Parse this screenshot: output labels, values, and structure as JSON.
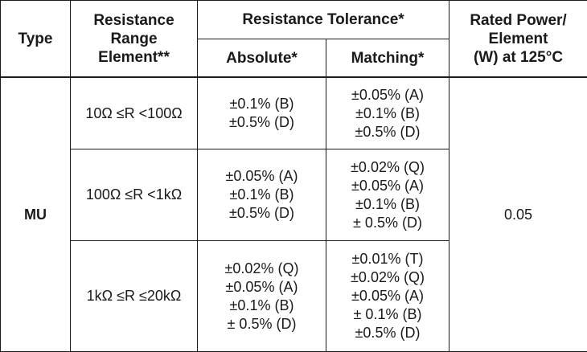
{
  "headers": {
    "type": "Type",
    "range_line1": "Resistance",
    "range_line2": "Range",
    "range_line3": "Element**",
    "tolerance": "Resistance Tolerance*",
    "absolute": "Absolute*",
    "matching": "Matching*",
    "power_line1": "Rated Power/",
    "power_line2": "Element",
    "power_line3": "(W) at 125°C"
  },
  "type_value": "MU",
  "power_value": "0.05",
  "rows": [
    {
      "range": "10Ω ≤R <100Ω",
      "absolute": [
        "±0.1% (B)",
        "±0.5% (D)"
      ],
      "matching": [
        "±0.05% (A)",
        "±0.1% (B)",
        "±0.5% (D)"
      ]
    },
    {
      "range": "100Ω ≤R <1kΩ",
      "absolute": [
        "±0.05% (A)",
        "±0.1% (B)",
        "±0.5% (D)"
      ],
      "matching": [
        "±0.02% (Q)",
        "±0.05% (A)",
        "±0.1% (B)",
        "± 0.5% (D)"
      ]
    },
    {
      "range": "1kΩ ≤R ≤20kΩ",
      "absolute": [
        "±0.02% (Q)",
        "±0.05% (A)",
        "±0.1% (B)",
        "± 0.5% (D)"
      ],
      "matching": [
        "±0.01% (T)",
        "±0.02% (Q)",
        "±0.05% (A)",
        "± 0.1% (B)",
        "±0.5% (D)"
      ]
    }
  ]
}
